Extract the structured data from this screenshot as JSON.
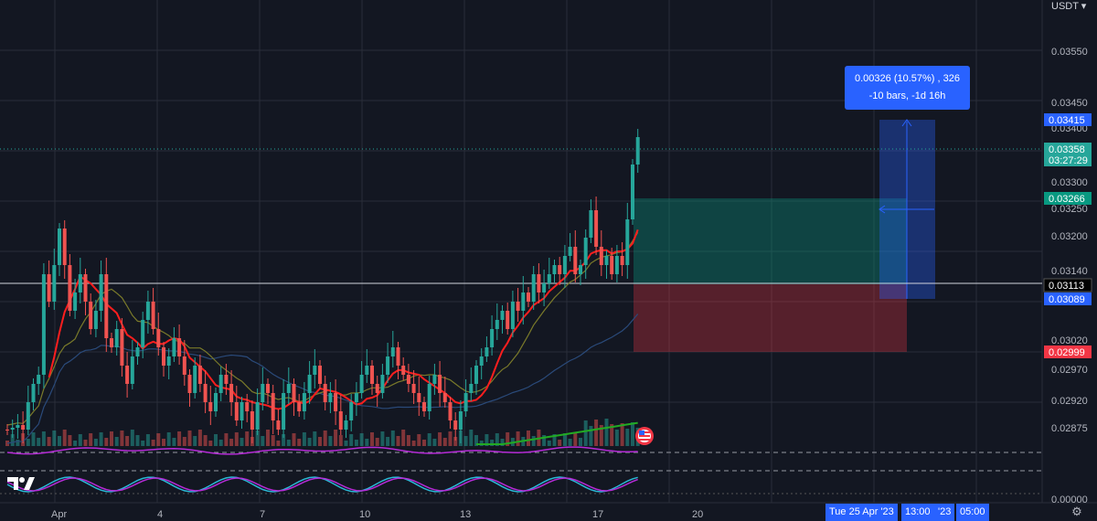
{
  "currency": "USDT ▾",
  "measure": {
    "line1": "0.00326 (10.57%) , 326",
    "line2": "-10 bars, -1d 16h"
  },
  "price_axis_labels": [
    "0.03550",
    "0.03450",
    "0.03400",
    "0.03300",
    "0.03250",
    "0.03200",
    "0.03140",
    "0.03020",
    "0.02970",
    "0.02920",
    "0.02875",
    "0.00000"
  ],
  "price_tags": [
    {
      "text": "0.03415",
      "color": "#2962ff"
    },
    {
      "text": "0.03358",
      "sub": "03:27:29",
      "color": "#26a69a"
    },
    {
      "text": "0.03266",
      "color": "#089981"
    },
    {
      "text": "0.03113",
      "color": "#000000"
    },
    {
      "text": "0.03089",
      "color": "#2962ff"
    },
    {
      "text": "0.02999",
      "color": "#f23645"
    }
  ],
  "time_labels": [
    "Apr",
    "4",
    "7",
    "10",
    "13",
    "17",
    "20"
  ],
  "time_tags": [
    "Tue 25 Apr '23",
    "13:00",
    "'23",
    "05:00"
  ],
  "icons": {
    "logo": "tradingview-logo-icon",
    "settings": "gear-icon",
    "flag": "us-flag-icon"
  },
  "colors": {
    "up": "#26a69a",
    "down": "#ef5350",
    "ma_red": "#ff1e1e",
    "ma_blue": "#2a4a7a",
    "ma_olive": "#7a7a2a",
    "ma_green": "#22aa22",
    "oscillator": "#b52bd6",
    "stoch_k": "#2bb7d6",
    "stoch_d": "#b52bd6"
  },
  "chart_data": {
    "type": "candlestick",
    "ylim": [
      0.0285,
      0.0357
    ],
    "current_price": 0.03358,
    "countdown": "03:27:29",
    "position": {
      "target": 0.03266,
      "entry": 0.03113,
      "stop": 0.02999
    },
    "measure_range": {
      "from": 0.03089,
      "to": 0.03415
    }
  }
}
